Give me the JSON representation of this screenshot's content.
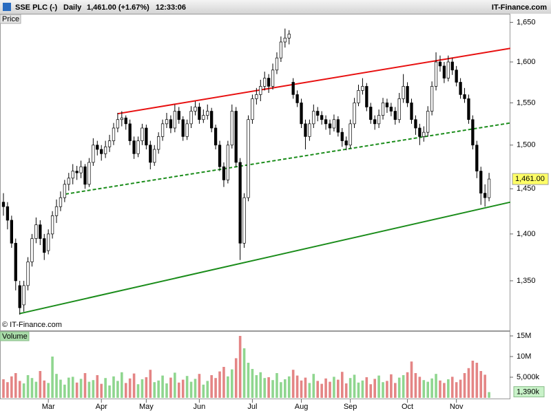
{
  "header": {
    "symbol": "SSE PLC (-)",
    "period": "Daily",
    "quote": "1,461.00 (+1.67%)",
    "time": "12:33:06",
    "site": "IT-Finance.com"
  },
  "chart_data": [
    {
      "type": "candlestick",
      "label": "Price",
      "copyright": "© IT-Finance.com",
      "log_scale": true,
      "ylim": [
        1299,
        1661
      ],
      "yticks": [
        {
          "value": 1350,
          "label": "1,350"
        },
        {
          "value": 1400,
          "label": "1,400"
        },
        {
          "value": 1450,
          "label": "1,450"
        },
        {
          "value": 1500,
          "label": "1,500"
        },
        {
          "value": 1550,
          "label": "1,550"
        },
        {
          "value": 1600,
          "label": "1,600"
        },
        {
          "value": 1650,
          "label": "1,650"
        }
      ],
      "up_color": "#ffffff",
      "down_color": "#000000",
      "last_value_label": "1,461.00",
      "last_label_color": "#ffff66",
      "candles": [
        [
          1435,
          1445,
          1420,
          1430
        ],
        [
          1430,
          1435,
          1405,
          1415
        ],
        [
          1415,
          1420,
          1385,
          1390
        ],
        [
          1390,
          1395,
          1340,
          1350
        ],
        [
          1345,
          1350,
          1315,
          1322
        ],
        [
          1325,
          1350,
          1318,
          1345
        ],
        [
          1345,
          1375,
          1340,
          1370
        ],
        [
          1370,
          1400,
          1365,
          1395
        ],
        [
          1395,
          1418,
          1390,
          1410
        ],
        [
          1410,
          1415,
          1388,
          1395
        ],
        [
          1395,
          1400,
          1372,
          1380
        ],
        [
          1382,
          1405,
          1378,
          1400
        ],
        [
          1400,
          1425,
          1395,
          1420
        ],
        [
          1420,
          1438,
          1412,
          1430
        ],
        [
          1430,
          1447,
          1425,
          1440
        ],
        [
          1440,
          1460,
          1435,
          1455
        ],
        [
          1455,
          1468,
          1448,
          1462
        ],
        [
          1462,
          1478,
          1455,
          1470
        ],
        [
          1470,
          1476,
          1460,
          1468
        ],
        [
          1468,
          1482,
          1462,
          1475
        ],
        [
          1475,
          1478,
          1450,
          1455
        ],
        [
          1455,
          1485,
          1452,
          1480
        ],
        [
          1480,
          1508,
          1476,
          1500
        ],
        [
          1500,
          1505,
          1488,
          1495
        ],
        [
          1495,
          1500,
          1482,
          1490
        ],
        [
          1490,
          1505,
          1485,
          1498
        ],
        [
          1498,
          1512,
          1492,
          1505
        ],
        [
          1505,
          1526,
          1500,
          1520
        ],
        [
          1520,
          1538,
          1515,
          1530
        ],
        [
          1530,
          1540,
          1522,
          1532
        ],
        [
          1532,
          1535,
          1518,
          1525
        ],
        [
          1525,
          1530,
          1500,
          1505
        ],
        [
          1505,
          1510,
          1484,
          1490
        ],
        [
          1490,
          1510,
          1486,
          1505
        ],
        [
          1505,
          1525,
          1500,
          1520
        ],
        [
          1520,
          1524,
          1495,
          1500
        ],
        [
          1500,
          1505,
          1472,
          1480
        ],
        [
          1480,
          1500,
          1476,
          1495
        ],
        [
          1495,
          1515,
          1490,
          1510
        ],
        [
          1510,
          1530,
          1505,
          1525
        ],
        [
          1525,
          1538,
          1520,
          1530
        ],
        [
          1530,
          1535,
          1514,
          1520
        ],
        [
          1520,
          1548,
          1515,
          1540
        ],
        [
          1540,
          1545,
          1525,
          1530
        ],
        [
          1530,
          1534,
          1505,
          1510
        ],
        [
          1510,
          1530,
          1506,
          1525
        ],
        [
          1525,
          1546,
          1520,
          1540
        ],
        [
          1540,
          1552,
          1535,
          1545
        ],
        [
          1545,
          1550,
          1525,
          1530
        ],
        [
          1530,
          1542,
          1526,
          1535
        ],
        [
          1535,
          1548,
          1530,
          1540
        ],
        [
          1540,
          1544,
          1515,
          1520
        ],
        [
          1520,
          1524,
          1495,
          1500
        ],
        [
          1500,
          1505,
          1470,
          1475
        ],
        [
          1475,
          1480,
          1452,
          1460
        ],
        [
          1460,
          1505,
          1456,
          1500
        ],
        [
          1500,
          1548,
          1496,
          1540
        ],
        [
          1540,
          1545,
          1475,
          1480
        ],
        [
          1480,
          1485,
          1372,
          1390
        ],
        [
          1390,
          1445,
          1385,
          1440
        ],
        [
          1440,
          1535,
          1436,
          1530
        ],
        [
          1530,
          1560,
          1525,
          1555
        ],
        [
          1555,
          1568,
          1548,
          1560
        ],
        [
          1560,
          1578,
          1552,
          1570
        ],
        [
          1570,
          1588,
          1565,
          1580
        ],
        [
          1580,
          1585,
          1562,
          1570
        ],
        [
          1570,
          1598,
          1566,
          1590
        ],
        [
          1590,
          1612,
          1585,
          1605
        ],
        [
          1605,
          1632,
          1600,
          1625
        ],
        [
          1625,
          1642,
          1618,
          1630
        ],
        [
          1630,
          1640,
          1622,
          1635
        ],
        [
          1575,
          1580,
          1555,
          1560
        ],
        [
          1560,
          1565,
          1545,
          1550
        ],
        [
          1550,
          1555,
          1520,
          1525
        ],
        [
          1525,
          1530,
          1495,
          1510
        ],
        [
          1510,
          1530,
          1505,
          1525
        ],
        [
          1525,
          1548,
          1520,
          1540
        ],
        [
          1540,
          1545,
          1528,
          1535
        ],
        [
          1535,
          1540,
          1524,
          1530
        ],
        [
          1530,
          1535,
          1518,
          1525
        ],
        [
          1525,
          1530,
          1512,
          1520
        ],
        [
          1520,
          1536,
          1516,
          1530
        ],
        [
          1530,
          1534,
          1510,
          1515
        ],
        [
          1515,
          1520,
          1498,
          1505
        ],
        [
          1505,
          1510,
          1494,
          1500
        ],
        [
          1500,
          1530,
          1496,
          1525
        ],
        [
          1525,
          1556,
          1520,
          1550
        ],
        [
          1550,
          1572,
          1546,
          1565
        ],
        [
          1565,
          1580,
          1560,
          1570
        ],
        [
          1570,
          1574,
          1540,
          1545
        ],
        [
          1545,
          1550,
          1525,
          1530
        ],
        [
          1530,
          1535,
          1518,
          1525
        ],
        [
          1525,
          1542,
          1520,
          1535
        ],
        [
          1535,
          1556,
          1530,
          1550
        ],
        [
          1550,
          1555,
          1538,
          1545
        ],
        [
          1545,
          1550,
          1534,
          1540
        ],
        [
          1540,
          1545,
          1524,
          1530
        ],
        [
          1530,
          1562,
          1526,
          1555
        ],
        [
          1555,
          1585,
          1550,
          1570
        ],
        [
          1570,
          1575,
          1545,
          1550
        ],
        [
          1550,
          1555,
          1525,
          1530
        ],
        [
          1530,
          1535,
          1512,
          1520
        ],
        [
          1520,
          1525,
          1500,
          1510
        ],
        [
          1510,
          1522,
          1504,
          1515
        ],
        [
          1515,
          1546,
          1510,
          1540
        ],
        [
          1540,
          1576,
          1535,
          1570
        ],
        [
          1570,
          1612,
          1565,
          1600
        ],
        [
          1600,
          1608,
          1588,
          1595
        ],
        [
          1595,
          1600,
          1574,
          1580
        ],
        [
          1580,
          1608,
          1576,
          1600
        ],
        [
          1600,
          1605,
          1584,
          1590
        ],
        [
          1590,
          1595,
          1570,
          1575
        ],
        [
          1575,
          1580,
          1555,
          1560
        ],
        [
          1560,
          1568,
          1550,
          1555
        ],
        [
          1555,
          1560,
          1525,
          1530
        ],
        [
          1530,
          1535,
          1495,
          1500
        ],
        [
          1500,
          1505,
          1462,
          1470
        ],
        [
          1470,
          1475,
          1432,
          1445
        ],
        [
          1445,
          1455,
          1430,
          1440
        ],
        [
          1440,
          1468,
          1436,
          1461
        ]
      ],
      "lines": [
        {
          "x": [
            28,
            124.2
          ],
          "y": [
            1537,
            1617
          ],
          "color": "#e81010",
          "dashed": false
        },
        {
          "x": [
            15.2,
            124.2
          ],
          "y": [
            1444,
            1526
          ],
          "color": "#1a8c1a",
          "dashed": true
        },
        {
          "x": [
            3.9,
            124.2
          ],
          "y": [
            1316,
            1435
          ],
          "color": "#1a8c1a",
          "dashed": false
        }
      ]
    },
    {
      "type": "volume_bar",
      "label": "Volume",
      "ylim": [
        0,
        16
      ],
      "yticks": [
        {
          "value": 5,
          "label": "5,000k"
        },
        {
          "value": 10,
          "label": "10M"
        },
        {
          "value": 15,
          "label": "15M"
        }
      ],
      "xticks": [
        {
          "value": 11,
          "label": "Mar"
        },
        {
          "value": 24,
          "label": "Apr"
        },
        {
          "value": 35,
          "label": "May"
        },
        {
          "value": 48,
          "label": "Jun"
        },
        {
          "value": 61,
          "label": "Jul"
        },
        {
          "value": 73,
          "label": "Aug"
        },
        {
          "value": 85,
          "label": "Sep"
        },
        {
          "value": 99,
          "label": "Oct"
        },
        {
          "value": 111,
          "label": "Nov"
        }
      ],
      "up_color": "#8fd68f",
      "down_color": "#e48585",
      "last_value_label": "1,390k",
      "last_label_color": "#c8f2c8",
      "values": [
        4.5,
        3.8,
        5.2,
        6.0,
        4.1,
        3.5,
        5.5,
        4.8,
        3.9,
        6.5,
        4.2,
        3.6,
        10.0,
        5.8,
        4.4,
        3.2,
        4.9,
        5.1,
        3.7,
        4.6,
        6.0,
        3.9,
        4.3,
        5.5,
        3.4,
        4.8,
        3.0,
        5.2,
        4.1,
        6.2,
        3.6,
        4.7,
        5.9,
        3.3,
        4.5,
        5.0,
        6.8,
        3.8,
        4.2,
        5.4,
        3.5,
        4.9,
        6.1,
        3.7,
        4.4,
        5.3,
        3.9,
        4.6,
        5.8,
        3.2,
        4.1,
        5.5,
        4.8,
        6.4,
        7.5,
        5.2,
        6.9,
        9.6,
        15.0,
        12.0,
        8.5,
        7.0,
        5.5,
        6.2,
        4.8,
        5.0,
        4.3,
        6.0,
        3.8,
        4.5,
        5.2,
        6.8,
        5.4,
        4.2,
        4.9,
        3.6,
        5.8,
        4.1,
        3.4,
        4.7,
        3.9,
        5.1,
        4.4,
        6.3,
        3.5,
        4.8,
        5.6,
        3.7,
        4.2,
        5.0,
        3.3,
        4.6,
        5.4,
        3.8,
        4.1,
        5.7,
        3.6,
        4.9,
        5.5,
        6.2,
        8.8,
        6.0,
        5.1,
        4.3,
        3.9,
        4.7,
        5.8,
        4.2,
        3.6,
        4.5,
        5.1,
        3.8,
        4.4,
        6.0,
        7.2,
        9.0,
        8.5,
        6.5,
        5.6,
        1.39
      ]
    }
  ]
}
